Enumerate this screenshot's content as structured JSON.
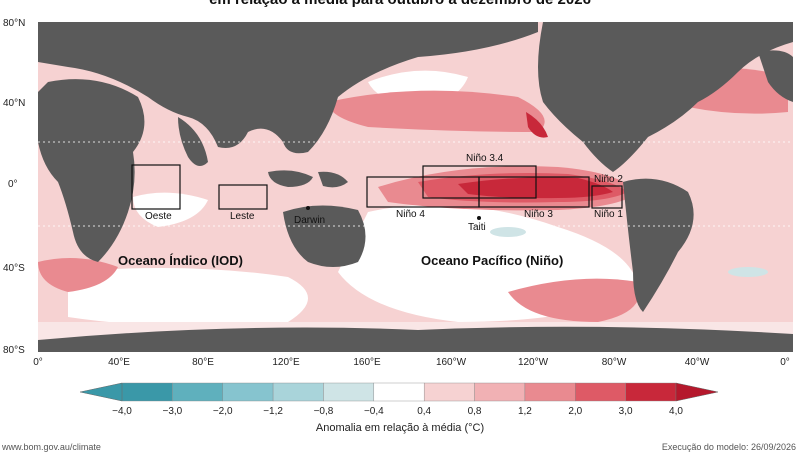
{
  "title": "em relação à média para outubro a dezembro de 2026",
  "lat_labels": [
    "80°N",
    "40°N",
    "0°",
    "40°S",
    "80°S"
  ],
  "lon_labels": [
    "0°",
    "40°E",
    "80°E",
    "120°E",
    "160°E",
    "160°W",
    "120°W",
    "80°W",
    "40°W",
    "0°"
  ],
  "boxes": {
    "oeste": "Oeste",
    "leste": "Leste",
    "nino4": "Niño 4",
    "nino34": "Niño 3.4",
    "nino3": "Niño 3",
    "nino12_top": "Niño 2",
    "nino12_bottom": "Niño 1"
  },
  "places": {
    "darwin": "Darwin",
    "taiti": "Taiti"
  },
  "regions": {
    "indico": "Oceano Índico (IOD)",
    "pacifico": "Oceano Pacífico (Niño)"
  },
  "colorbar": {
    "ticks": [
      "−4,0",
      "−3,0",
      "−2,0",
      "−1,2",
      "−0,8",
      "−0,4",
      "0,4",
      "0,8",
      "1,2",
      "2,0",
      "3,0",
      "4,0"
    ],
    "label": "Anomalia em relação à média (°C)",
    "colors": [
      "#3a98a8",
      "#5fb0bd",
      "#86c4cf",
      "#a9d4da",
      "#cfe4e6",
      "#ffffff",
      "#f6d2d2",
      "#f1b1b4",
      "#e98a90",
      "#de5a66",
      "#c8283a"
    ]
  },
  "footer": {
    "left": "www.bom.gov.au/climate",
    "right": "Execução do modelo: 26/09/2026"
  },
  "colors": {
    "land": "#5a5a5a",
    "warm_light": "#f6d2d2",
    "warm_mid": "#e98a90",
    "warm_strong": "#c8283a",
    "cool": "#86c4cf"
  }
}
